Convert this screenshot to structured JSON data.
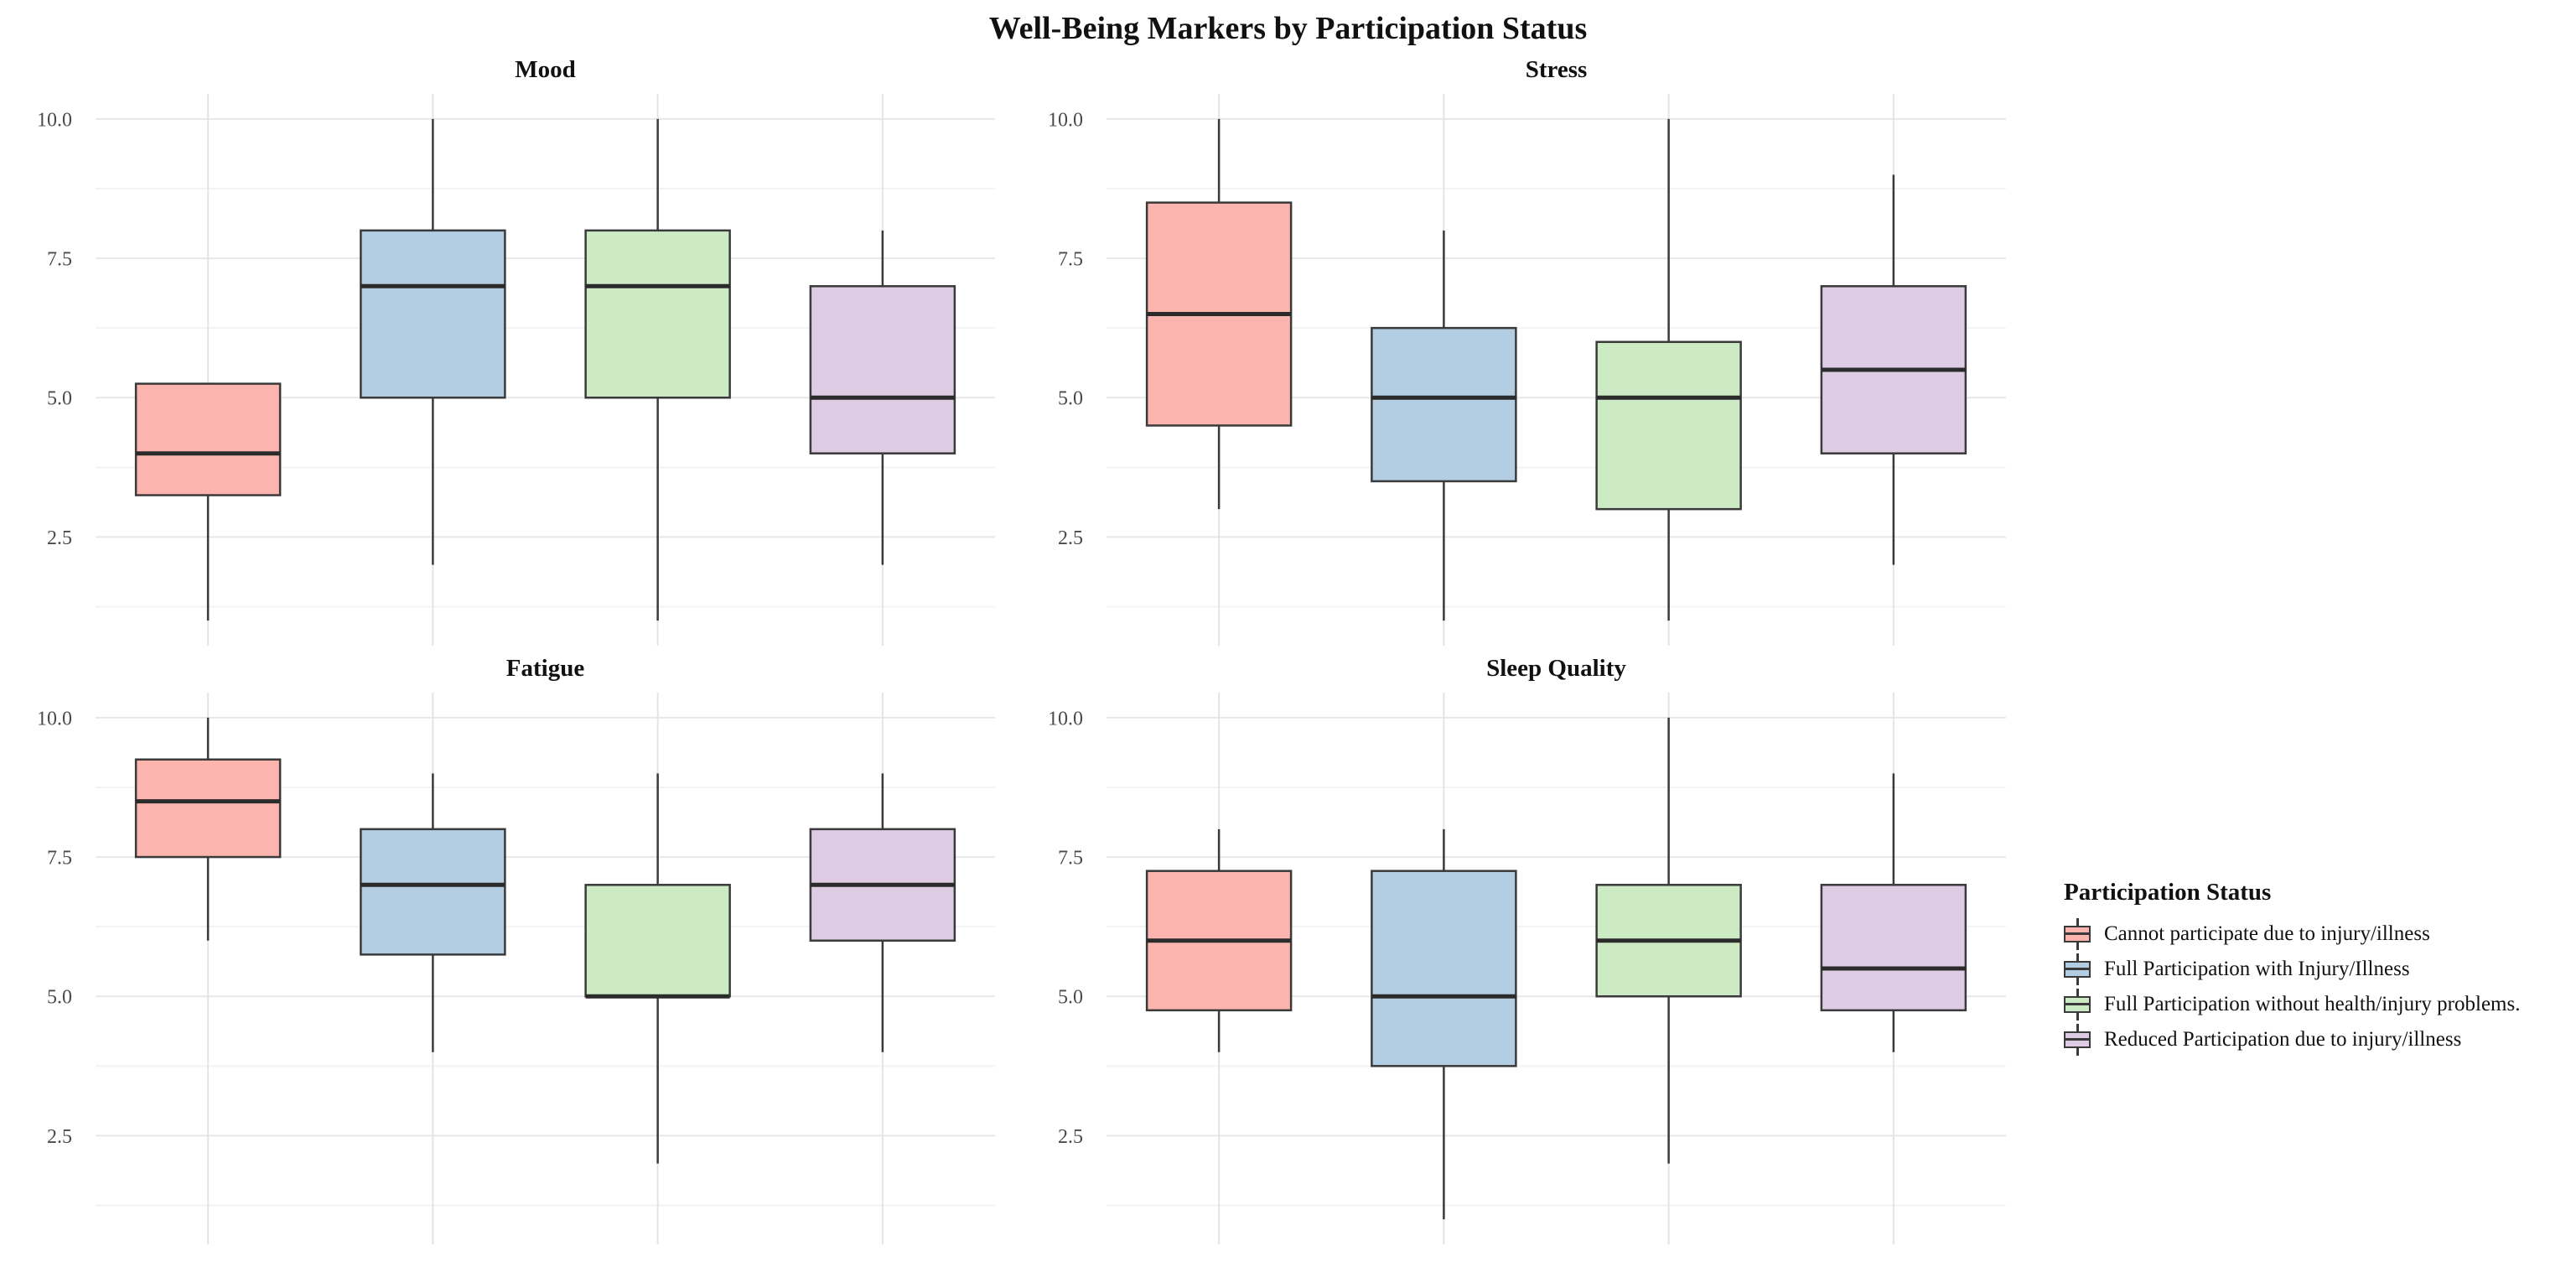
{
  "page": {
    "title": "Well-Being Markers by Participation Status"
  },
  "legend": {
    "title": "Participation Status",
    "entries": [
      {
        "label": "Cannot participate due to injury/illness",
        "color": "#FBB4AE"
      },
      {
        "label": "Full Participation with Injury/Illness",
        "color": "#B3CDE3"
      },
      {
        "label": "Full Participation without health/injury problems.",
        "color": "#CCEBC5"
      },
      {
        "label": "Reduced Participation due to injury/illness",
        "color": "#DECBE4"
      }
    ]
  },
  "chart_data": {
    "type": "boxplot-grid",
    "suptitle": "Well-Being Markers by Participation Status",
    "legend_title": "Participation Status",
    "legend_position": "right",
    "grid": "2x2 facets, light gray major and minor gridlines, white background, no x tick labels",
    "y_domain": [
      0.55,
      10.45
    ],
    "y_major_ticks": [
      2.5,
      5.0,
      7.5,
      10.0
    ],
    "y_minor_ticks": [
      1.25,
      3.75,
      6.25,
      8.75
    ],
    "y_tick_labels": [
      "10.0",
      "7.5",
      "5.0",
      "2.5"
    ],
    "y_tick_values": [
      10.0,
      7.5,
      5.0,
      2.5
    ],
    "groups": [
      {
        "name": "Cannot participate due to injury/illness",
        "color": "#FBB4AE"
      },
      {
        "name": "Full Participation with Injury/Illness",
        "color": "#B3CDE3"
      },
      {
        "name": "Full Participation without health/injury problems.",
        "color": "#CCEBC5"
      },
      {
        "name": "Reduced Participation due to injury/illness",
        "color": "#DECBE4"
      }
    ],
    "box_stats_format": [
      "whisker_low",
      "q1",
      "median",
      "q3",
      "whisker_high"
    ],
    "panels": [
      {
        "title": "Mood",
        "boxes": [
          {
            "group": 0,
            "whisker_low": 1.0,
            "q1": 3.25,
            "median": 4.0,
            "q3": 5.25,
            "whisker_high": 5.25
          },
          {
            "group": 1,
            "whisker_low": 2.0,
            "q1": 5.0,
            "median": 7.0,
            "q3": 8.0,
            "whisker_high": 10.0
          },
          {
            "group": 2,
            "whisker_low": 1.0,
            "q1": 5.0,
            "median": 7.0,
            "q3": 8.0,
            "whisker_high": 10.0
          },
          {
            "group": 3,
            "whisker_low": 2.0,
            "q1": 4.0,
            "median": 5.0,
            "q3": 7.0,
            "whisker_high": 8.0
          }
        ]
      },
      {
        "title": "Stress",
        "boxes": [
          {
            "group": 0,
            "whisker_low": 3.0,
            "q1": 4.5,
            "median": 6.5,
            "q3": 8.5,
            "whisker_high": 10.0
          },
          {
            "group": 1,
            "whisker_low": 1.0,
            "q1": 3.5,
            "median": 5.0,
            "q3": 6.25,
            "whisker_high": 8.0
          },
          {
            "group": 2,
            "whisker_low": 1.0,
            "q1": 3.0,
            "median": 5.0,
            "q3": 6.0,
            "whisker_high": 10.0
          },
          {
            "group": 3,
            "whisker_low": 2.0,
            "q1": 4.0,
            "median": 5.5,
            "q3": 7.0,
            "whisker_high": 9.0
          }
        ]
      },
      {
        "title": "Fatigue",
        "boxes": [
          {
            "group": 0,
            "whisker_low": 6.0,
            "q1": 7.5,
            "median": 8.5,
            "q3": 9.25,
            "whisker_high": 10.0
          },
          {
            "group": 1,
            "whisker_low": 4.0,
            "q1": 5.75,
            "median": 7.0,
            "q3": 8.0,
            "whisker_high": 9.0
          },
          {
            "group": 2,
            "whisker_low": 2.0,
            "q1": 5.0,
            "median": 5.0,
            "q3": 7.0,
            "whisker_high": 9.0
          },
          {
            "group": 3,
            "whisker_low": 4.0,
            "q1": 6.0,
            "median": 7.0,
            "q3": 8.0,
            "whisker_high": 9.0
          }
        ]
      },
      {
        "title": "Sleep Quality",
        "boxes": [
          {
            "group": 0,
            "whisker_low": 4.0,
            "q1": 4.75,
            "median": 6.0,
            "q3": 7.25,
            "whisker_high": 8.0
          },
          {
            "group": 1,
            "whisker_low": 1.0,
            "q1": 3.75,
            "median": 5.0,
            "q3": 7.25,
            "whisker_high": 8.0
          },
          {
            "group": 2,
            "whisker_low": 2.0,
            "q1": 5.0,
            "median": 6.0,
            "q3": 7.0,
            "whisker_high": 10.0
          },
          {
            "group": 3,
            "whisker_low": 4.0,
            "q1": 4.75,
            "median": 5.5,
            "q3": 7.0,
            "whisker_high": 9.0
          }
        ]
      }
    ]
  },
  "style": {
    "box_border_color": "#3a3a3a",
    "median_color": "#2b2b2b",
    "whisker_color": "#3a3a3a",
    "major_grid_color": "#e7e7e7",
    "minor_grid_color": "#f3f3f3",
    "category_grid_color": "#e4e4e4",
    "tick_label_color": "#4a4a4a",
    "title_color": "#111111",
    "background": "#ffffff"
  }
}
